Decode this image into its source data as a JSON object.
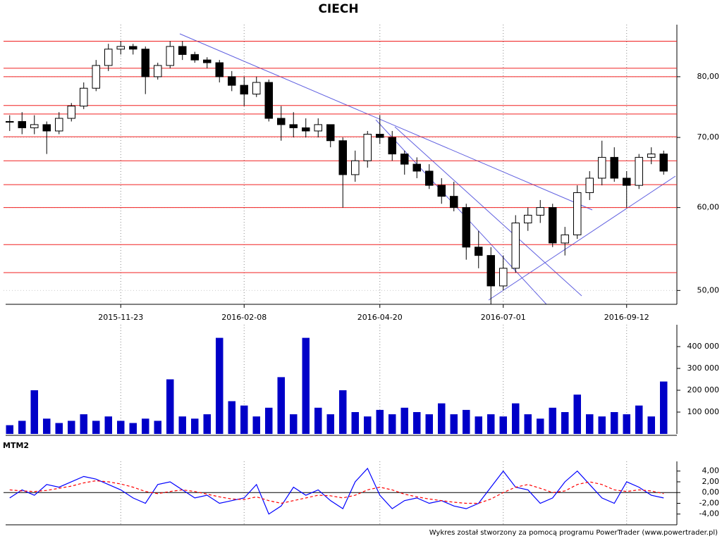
{
  "chart_data": [
    {
      "type": "candlestick",
      "title": "CIECH",
      "categories": [
        null,
        null,
        null,
        null,
        null,
        null,
        null,
        null,
        null,
        "2015-11-23",
        null,
        null,
        null,
        null,
        null,
        null,
        null,
        null,
        null,
        "2016-02-08",
        null,
        null,
        null,
        null,
        null,
        null,
        null,
        null,
        null,
        null,
        "2016-04-20",
        null,
        null,
        null,
        null,
        null,
        null,
        null,
        null,
        null,
        "2016-07-01",
        null,
        null,
        null,
        null,
        null,
        null,
        null,
        null,
        null,
        "2016-09-12",
        null,
        null,
        null
      ],
      "open": [
        72.5,
        72.5,
        71.5,
        72,
        71,
        73,
        75,
        78,
        82,
        85,
        85.5,
        85,
        80,
        82,
        85.5,
        84,
        83,
        82.5,
        80,
        78.5,
        77,
        79,
        73,
        72,
        71.5,
        71,
        72,
        69.5,
        64.5,
        66.5,
        70.5,
        70,
        67.5,
        66,
        65,
        63,
        61.5,
        60,
        55,
        54,
        50.5,
        52.5,
        58,
        59,
        60,
        55.5,
        56.5,
        62,
        64,
        67,
        64,
        63,
        67,
        67.5
      ],
      "high": [
        73.5,
        74,
        73.5,
        72.5,
        74,
        75.5,
        79,
        83,
        86,
        86.5,
        86,
        85.5,
        82.5,
        86.5,
        86.5,
        84.5,
        83.5,
        83,
        81,
        80,
        80,
        79.5,
        75,
        74,
        73,
        73,
        72,
        70,
        68,
        71,
        73.5,
        71,
        68,
        67,
        66,
        64,
        63.5,
        60.5,
        57,
        55,
        54,
        59,
        60,
        61,
        60.5,
        57.5,
        63,
        65,
        69.5,
        68.5,
        65,
        67.5,
        68.5,
        68
      ],
      "low": [
        71,
        70.5,
        70.5,
        67.5,
        70.5,
        72.5,
        74.5,
        77.5,
        81,
        84,
        84,
        77,
        79.5,
        81.5,
        83,
        82.5,
        81.5,
        79,
        77.5,
        75,
        76.5,
        72.5,
        69.5,
        70,
        70,
        70,
        68.5,
        60,
        63.5,
        65.5,
        69,
        66.5,
        64.5,
        64,
        62.5,
        60.5,
        59.5,
        53.5,
        52.5,
        48.5,
        50,
        52,
        57,
        58,
        55,
        54,
        56,
        61,
        63,
        63.5,
        60,
        62.5,
        66,
        64.5
      ],
      "close": [
        72.5,
        71.5,
        72,
        71,
        73,
        75,
        78,
        82,
        85,
        85.5,
        85,
        80,
        82,
        85.5,
        84,
        83,
        82.5,
        80,
        78.5,
        77,
        79,
        73,
        72,
        71.5,
        71,
        72,
        69.5,
        64.5,
        66.5,
        70.5,
        70,
        67.5,
        66,
        65,
        63,
        61.5,
        60,
        55,
        54,
        50.5,
        52.5,
        58,
        59,
        60,
        55.5,
        56.5,
        62,
        64,
        67,
        64,
        63,
        67,
        67.5,
        65
      ],
      "up_color": "#ffffff",
      "down_color": "#000000",
      "log_scale": true,
      "ylim": [
        48.5,
        89.7
      ],
      "yticks": [
        {
          "value": 50,
          "label": "50,00"
        },
        {
          "value": 60,
          "label": "60,00"
        },
        {
          "value": 70,
          "label": "70,00"
        },
        {
          "value": 80,
          "label": "80,00"
        }
      ],
      "levels": [
        86.5,
        81.5,
        80,
        75.1,
        73.7,
        70.1,
        66.5,
        63.1,
        60,
        55.3,
        52
      ],
      "level_color": "#f02020",
      "grid": true
    },
    {
      "type": "bar",
      "color": "#0000c8",
      "values": [
        40000,
        60000,
        200000,
        70000,
        50000,
        60000,
        90000,
        60000,
        80000,
        60000,
        50000,
        70000,
        60000,
        250000,
        80000,
        70000,
        90000,
        440000,
        150000,
        130000,
        80000,
        120000,
        260000,
        90000,
        440000,
        120000,
        90000,
        200000,
        100000,
        80000,
        110000,
        90000,
        120000,
        100000,
        90000,
        140000,
        90000,
        110000,
        80000,
        90000,
        80000,
        140000,
        90000,
        70000,
        120000,
        100000,
        180000,
        90000,
        80000,
        100000,
        90000,
        130000,
        80000,
        240000
      ],
      "ylim": [
        0,
        500000
      ],
      "yticks": [
        {
          "value": 100000,
          "label": "100 000"
        },
        {
          "value": 200000,
          "label": "200 000"
        },
        {
          "value": 300000,
          "label": "300 000"
        },
        {
          "value": 400000,
          "label": "400 000"
        }
      ]
    },
    {
      "type": "line",
      "title": "MTM2",
      "series": [
        {
          "color": "#0000ff",
          "style": "solid",
          "values": [
            -1,
            0.5,
            -0.5,
            1.5,
            1,
            2,
            3,
            2.5,
            1.5,
            0.5,
            -1,
            -2,
            1.5,
            2,
            0.5,
            -1,
            -0.5,
            -2,
            -1.5,
            -1,
            1.5,
            -4,
            -2.5,
            1,
            -0.5,
            0.5,
            -1.5,
            -3,
            2,
            4.5,
            -0.5,
            -3,
            -1.5,
            -1,
            -2,
            -1.5,
            -2.5,
            -3,
            -2,
            1,
            4,
            1,
            0.5,
            -2,
            -1,
            2,
            4,
            1.5,
            -1,
            -2,
            2,
            1,
            -0.5,
            -1
          ]
        },
        {
          "color": "#ff0000",
          "style": "dashed",
          "values": [
            0.5,
            0.3,
            0.2,
            0.4,
            0.8,
            1.2,
            1.8,
            2.2,
            2,
            1.6,
            1,
            0.2,
            -0.2,
            0.2,
            0.5,
            0.2,
            -0.3,
            -0.8,
            -1.2,
            -1.3,
            -0.8,
            -1.5,
            -2,
            -1.5,
            -1,
            -0.5,
            -0.6,
            -1,
            -0.5,
            0.5,
            1,
            0.5,
            -0.3,
            -0.8,
            -1.2,
            -1.5,
            -1.8,
            -2,
            -2,
            -1.2,
            0,
            1,
            1.5,
            0.8,
            0,
            0.3,
            1.5,
            2,
            1.5,
            0.5,
            0.2,
            0.5,
            0.3,
            -0.2
          ]
        }
      ],
      "ylim": [
        -6,
        5.8
      ],
      "yticks": [
        {
          "value": -4,
          "label": "-4,00"
        },
        {
          "value": -2,
          "label": "-2,00"
        },
        {
          "value": 0,
          "label": "0,00"
        },
        {
          "value": 2,
          "label": "2,00"
        },
        {
          "value": 4,
          "label": "4,00"
        }
      ],
      "zero_line": true
    }
  ],
  "footer": "Wykres został stworzony za pomocą programu PowerTrader (www.powertrader.pl)"
}
